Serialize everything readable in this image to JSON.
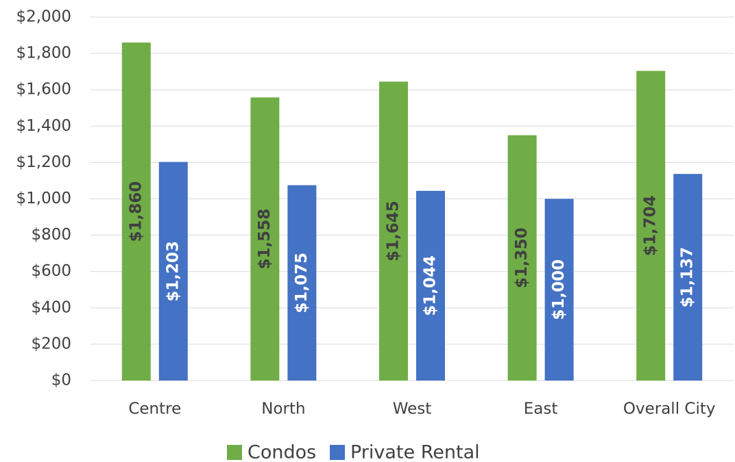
{
  "chart_data": {
    "type": "bar",
    "categories": [
      "Centre",
      "North",
      "West",
      "East",
      "Overall City"
    ],
    "series": [
      {
        "name": "Condos",
        "color": "#70ad47",
        "values": [
          1860,
          1558,
          1645,
          1350,
          1704
        ],
        "value_labels": [
          "$1,860",
          "$1,558",
          "$1,645",
          "$1,350",
          "$1,704"
        ],
        "label_color": "#404040"
      },
      {
        "name": "Private Rental",
        "color": "#4472c4",
        "values": [
          1203,
          1075,
          1044,
          1000,
          1137
        ],
        "value_labels": [
          "$1,203",
          "$1,075",
          "$1,044",
          "$1,000",
          "$1,137"
        ],
        "label_color": "#ffffff"
      }
    ],
    "ylim": [
      0,
      2000
    ],
    "yticks": [
      {
        "value": 0,
        "label": "$0"
      },
      {
        "value": 200,
        "label": "$200"
      },
      {
        "value": 400,
        "label": "$400"
      },
      {
        "value": 600,
        "label": "$600"
      },
      {
        "value": 800,
        "label": "$800"
      },
      {
        "value": 1000,
        "label": "$1,000"
      },
      {
        "value": 1200,
        "label": "$1,200"
      },
      {
        "value": 1400,
        "label": "$1,400"
      },
      {
        "value": 1600,
        "label": "$1,600"
      },
      {
        "value": 1800,
        "label": "$1,800"
      },
      {
        "value": 2000,
        "label": "$2,000"
      }
    ],
    "grid": true,
    "legend": "bottom"
  }
}
